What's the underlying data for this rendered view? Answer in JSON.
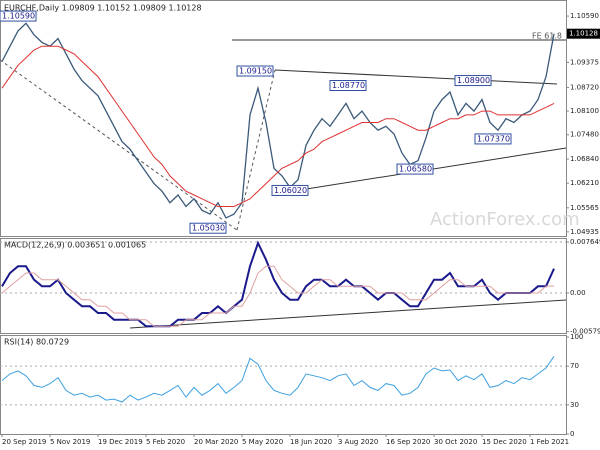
{
  "chart_data": {
    "type": "ohlc-indicators",
    "title": "EURCHF,Daily 1.09809 1.10152 1.09809 1.10128",
    "watermark": "ActionForex.com",
    "categories": [
      "20 Sep 2019",
      null,
      null,
      null,
      null,
      null,
      "5 Nov 2019",
      null,
      null,
      null,
      null,
      null,
      "19 Dec 2019",
      null,
      null,
      null,
      null,
      null,
      "5 Feb 2020",
      null,
      null,
      null,
      null,
      null,
      "20 Mar 2020",
      null,
      null,
      null,
      null,
      null,
      "5 May 2020",
      null,
      null,
      null,
      null,
      null,
      "18 Jun 2020",
      null,
      null,
      null,
      null,
      null,
      "3 Aug 2020",
      null,
      null,
      null,
      null,
      null,
      "16 Sep 2020",
      null,
      null,
      null,
      null,
      null,
      "30 Oct 2020",
      null,
      null,
      null,
      null,
      null,
      "15 Dec 2020",
      null,
      null,
      null,
      null,
      null,
      "1 Feb 2021",
      null,
      null,
      null
    ],
    "ylim": [
      1.048,
      1.1088
    ],
    "yticks": [
      {
        "value": 1.1059,
        "label": "1.10590"
      },
      {
        "value": 1.09375,
        "label": "1.09375"
      },
      {
        "value": 1.0872,
        "label": "1.08720"
      },
      {
        "value": 1.081,
        "label": "1.08100"
      },
      {
        "value": 1.0748,
        "label": "1.07480"
      },
      {
        "value": 1.0684,
        "label": "1.06840"
      },
      {
        "value": 1.0621,
        "label": "1.06210"
      },
      {
        "value": 1.05565,
        "label": "1.05565"
      },
      {
        "value": 1.04935,
        "label": "1.04935"
      }
    ],
    "last_price": {
      "value": 1.10128,
      "label": "1.10128"
    },
    "series": [
      {
        "name": "EURCHF",
        "color": "#3b5a7a",
        "values": [
          1.094,
          1.098,
          1.102,
          1.104,
          1.101,
          1.099,
          1.098,
          1.1,
          1.096,
          1.092,
          1.089,
          1.087,
          1.085,
          1.081,
          1.077,
          1.073,
          1.071,
          1.068,
          1.065,
          1.062,
          1.06,
          1.057,
          1.059,
          1.056,
          1.058,
          1.055,
          1.054,
          1.057,
          1.053,
          1.054,
          1.057,
          1.08,
          1.087,
          1.078,
          1.066,
          1.064,
          1.061,
          1.063,
          1.072,
          1.076,
          1.079,
          1.077,
          1.08,
          1.083,
          1.079,
          1.081,
          1.078,
          1.076,
          1.077,
          1.075,
          1.07,
          1.067,
          1.068,
          1.074,
          1.081,
          1.084,
          1.086,
          1.08,
          1.083,
          1.081,
          1.084,
          1.078,
          1.076,
          1.079,
          1.078,
          1.08,
          1.081,
          1.084,
          1.09,
          1.10128
        ]
      },
      {
        "name": "MA",
        "color": "#e03030",
        "values": [
          1.087,
          1.09,
          1.093,
          1.095,
          1.097,
          1.098,
          1.098,
          1.098,
          1.097,
          1.096,
          1.094,
          1.092,
          1.09,
          1.087,
          1.084,
          1.081,
          1.078,
          1.075,
          1.072,
          1.069,
          1.067,
          1.064,
          1.062,
          1.06,
          1.059,
          1.058,
          1.057,
          1.056,
          1.056,
          1.056,
          1.057,
          1.058,
          1.06,
          1.062,
          1.064,
          1.066,
          1.067,
          1.068,
          1.07,
          1.071,
          1.073,
          1.074,
          1.075,
          1.076,
          1.077,
          1.078,
          1.078,
          1.078,
          1.079,
          1.079,
          1.078,
          1.077,
          1.076,
          1.076,
          1.077,
          1.078,
          1.079,
          1.079,
          1.08,
          1.08,
          1.081,
          1.081,
          1.08,
          1.08,
          1.08,
          1.08,
          1.08,
          1.081,
          1.082,
          1.083
        ]
      }
    ],
    "annotations": [
      {
        "value": 1.1059,
        "label": "1.10590"
      },
      {
        "value": 1.0915,
        "label": "1.09150"
      },
      {
        "value": 1.0877,
        "label": "1.08770"
      },
      {
        "value": 1.089,
        "label": "1.08900"
      },
      {
        "value": 1.0737,
        "label": "1.07370"
      },
      {
        "value": 1.0658,
        "label": "1.06580"
      },
      {
        "value": 1.0602,
        "label": "1.06020"
      },
      {
        "value": 1.0503,
        "label": "1.05030"
      }
    ],
    "fe_label": "FE 61.8",
    "macd": {
      "title": "MACD(12,26,9) 0.003651 0.001065",
      "ylim": [
        -0.006,
        0.0081
      ],
      "yticks": [
        0.007649,
        {
          "value": 0,
          "label": "0.00"
        },
        -0.005797
      ],
      "series": [
        {
          "name": "MACD",
          "color": "#1a1a8c",
          "values": [
            0.001,
            0.003,
            0.004,
            0.004,
            0.002,
            0.001,
            0.001,
            0.002,
            0.0,
            -0.001,
            -0.002,
            -0.002,
            -0.003,
            -0.003,
            -0.004,
            -0.004,
            -0.004,
            -0.004,
            -0.005,
            -0.005,
            -0.005,
            -0.005,
            -0.004,
            -0.004,
            -0.004,
            -0.003,
            -0.003,
            -0.002,
            -0.003,
            -0.002,
            -0.001,
            0.004,
            0.0075,
            0.005,
            0.002,
            0.0,
            -0.001,
            -0.001,
            0.001,
            0.002,
            0.002,
            0.001,
            0.001,
            0.002,
            0.001,
            0.001,
            0.0,
            -0.001,
            0.0,
            0.0,
            -0.001,
            -0.002,
            -0.002,
            0.0,
            0.002,
            0.002,
            0.003,
            0.001,
            0.001,
            0.001,
            0.002,
            0.0,
            -0.001,
            0.0,
            0.0,
            0.0,
            0.0,
            0.001,
            0.001,
            0.003651
          ]
        },
        {
          "name": "Signal",
          "color": "#e0a0a0",
          "values": [
            0.0,
            0.001,
            0.002,
            0.003,
            0.003,
            0.002,
            0.002,
            0.002,
            0.001,
            0.0,
            -0.001,
            -0.001,
            -0.002,
            -0.002,
            -0.003,
            -0.003,
            -0.004,
            -0.004,
            -0.004,
            -0.005,
            -0.005,
            -0.005,
            -0.005,
            -0.004,
            -0.004,
            -0.004,
            -0.003,
            -0.003,
            -0.003,
            -0.002,
            -0.002,
            0.0,
            0.003,
            0.004,
            0.004,
            0.002,
            0.001,
            0.0,
            0.0,
            0.001,
            0.002,
            0.002,
            0.001,
            0.001,
            0.001,
            0.001,
            0.001,
            0.0,
            0.0,
            0.0,
            0.0,
            -0.001,
            -0.001,
            -0.001,
            0.0,
            0.001,
            0.002,
            0.002,
            0.001,
            0.001,
            0.001,
            0.001,
            0.0,
            0.0,
            0.0,
            0.0,
            0.0,
            0.0,
            0.001,
            0.001065
          ]
        }
      ]
    },
    "rsi": {
      "title": "RSI(14) 80.0729",
      "ylim": [
        0,
        100
      ],
      "yticks": [
        100,
        70,
        30,
        0
      ],
      "series": [
        {
          "name": "RSI",
          "color": "#3da0e0",
          "values": [
            55,
            62,
            65,
            60,
            50,
            48,
            52,
            58,
            45,
            40,
            42,
            38,
            40,
            35,
            36,
            33,
            40,
            35,
            38,
            42,
            40,
            45,
            50,
            38,
            48,
            40,
            45,
            52,
            42,
            48,
            55,
            78,
            72,
            55,
            45,
            42,
            40,
            48,
            62,
            60,
            58,
            55,
            60,
            62,
            50,
            55,
            48,
            45,
            52,
            50,
            40,
            42,
            48,
            62,
            68,
            65,
            66,
            55,
            60,
            56,
            62,
            48,
            50,
            55,
            52,
            58,
            56,
            62,
            68,
            80.0729
          ]
        }
      ]
    }
  }
}
